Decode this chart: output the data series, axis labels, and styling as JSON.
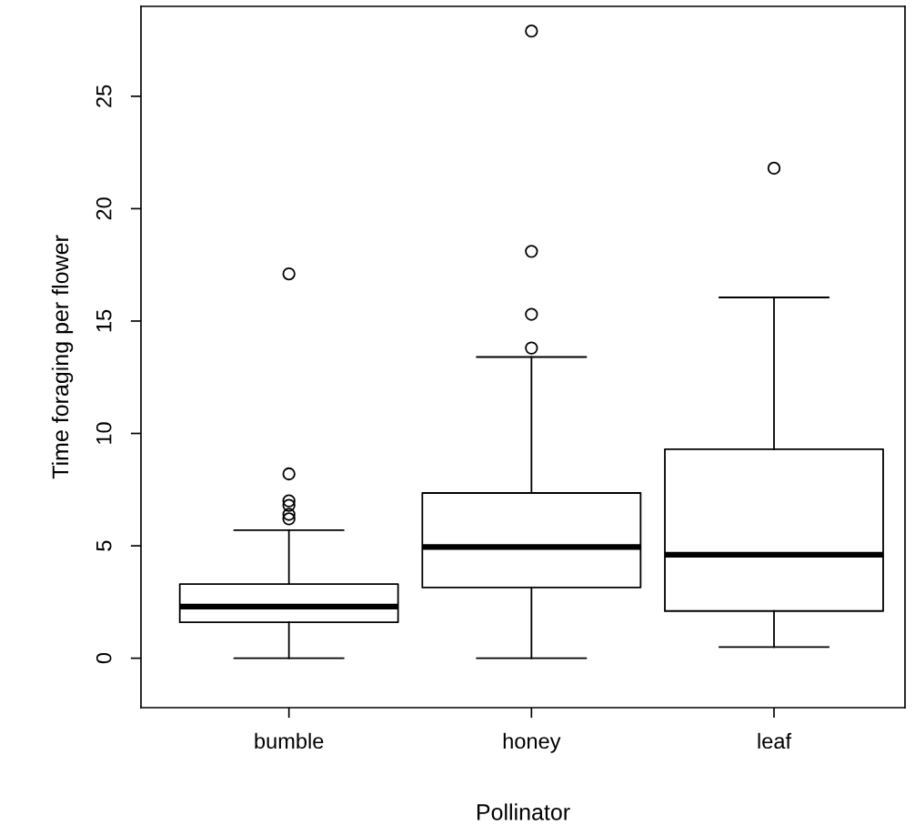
{
  "chart_data": {
    "type": "box",
    "xlabel": "Pollinator",
    "ylabel": "Time foraging per flower",
    "categories": [
      "bumble",
      "honey",
      "leaf"
    ],
    "boxes": [
      {
        "low": 0,
        "q1": 1.6,
        "median": 2.3,
        "q3": 3.3,
        "high": 5.7,
        "outliers": [
          17.1,
          8.2,
          7.0,
          6.8,
          6.4,
          6.2
        ]
      },
      {
        "low": 0,
        "q1": 3.15,
        "median": 4.95,
        "q3": 7.35,
        "high": 13.4,
        "outliers": [
          13.8,
          15.3,
          18.1,
          27.9
        ]
      },
      {
        "low": 0.5,
        "q1": 2.1,
        "median": 4.6,
        "q3": 9.3,
        "high": 16.05,
        "outliers": [
          21.8
        ]
      }
    ],
    "color": "#000000",
    "ylim": [
      -2.2,
      29
    ],
    "yticks": [
      0,
      5,
      10,
      15,
      20,
      25
    ],
    "grid": false,
    "marker": "circle"
  }
}
